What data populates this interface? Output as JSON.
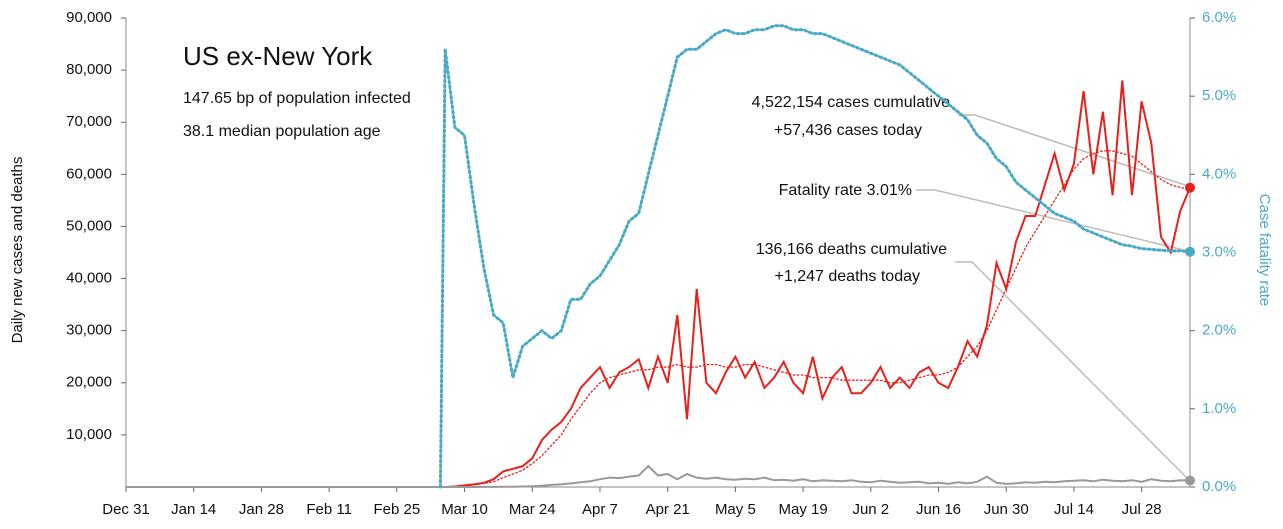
{
  "chart_data": {
    "type": "line",
    "title": "US ex-New York",
    "subtitle": [
      "147.65 bp of population infected",
      "38.1 median population age"
    ],
    "ylabel": "Daily new cases and deaths",
    "y2label": "Case fatality rate",
    "annotations": [
      "4,522,154 cases cumulative",
      "+57,436 cases today",
      "Fatality rate 3.01%",
      "136,166 deaths cumulative",
      "+1,247 deaths today"
    ],
    "xlim": [
      0,
      220
    ],
    "xticks": [
      {
        "value": 0,
        "label": "Dec 31"
      },
      {
        "value": 14,
        "label": "Jan 14"
      },
      {
        "value": 28,
        "label": "Jan 28"
      },
      {
        "value": 42,
        "label": "Feb 11"
      },
      {
        "value": 56,
        "label": "Feb 25"
      },
      {
        "value": 70,
        "label": "Mar 10"
      },
      {
        "value": 84,
        "label": "Mar 24"
      },
      {
        "value": 98,
        "label": "Apr 7"
      },
      {
        "value": 112,
        "label": "Apr 21"
      },
      {
        "value": 126,
        "label": "May 5"
      },
      {
        "value": 140,
        "label": "May 19"
      },
      {
        "value": 154,
        "label": "Jun 2"
      },
      {
        "value": 168,
        "label": "Jun 16"
      },
      {
        "value": 182,
        "label": "Jun 30"
      },
      {
        "value": 196,
        "label": "Jul 14"
      },
      {
        "value": 210,
        "label": "Jul 28"
      }
    ],
    "ylim": [
      0,
      90000
    ],
    "yticks": [
      {
        "value": 10000,
        "label": "10,000"
      },
      {
        "value": 20000,
        "label": "20,000"
      },
      {
        "value": 30000,
        "label": "30,000"
      },
      {
        "value": 40000,
        "label": "40,000"
      },
      {
        "value": 50000,
        "label": "50,000"
      },
      {
        "value": 60000,
        "label": "60,000"
      },
      {
        "value": 70000,
        "label": "70,000"
      },
      {
        "value": 80000,
        "label": "80,000"
      },
      {
        "value": 90000,
        "label": "90,000"
      }
    ],
    "y2lim": [
      0,
      6
    ],
    "y2ticks": [
      {
        "value": 0,
        "label": "0.0%"
      },
      {
        "value": 1,
        "label": "1.0%"
      },
      {
        "value": 2,
        "label": "2.0%"
      },
      {
        "value": 3,
        "label": "3.0%"
      },
      {
        "value": 4,
        "label": "4.0%"
      },
      {
        "value": 5,
        "label": "5.0%"
      },
      {
        "value": 6,
        "label": "6.0%"
      }
    ],
    "x": [
      0,
      20,
      40,
      60,
      64,
      65,
      66,
      68,
      70,
      72,
      74,
      76,
      78,
      80,
      82,
      84,
      86,
      88,
      90,
      92,
      94,
      96,
      98,
      100,
      102,
      104,
      106,
      108,
      110,
      112,
      114,
      116,
      118,
      120,
      122,
      124,
      126,
      128,
      130,
      132,
      134,
      136,
      138,
      140,
      142,
      144,
      146,
      148,
      150,
      152,
      154,
      156,
      158,
      160,
      162,
      164,
      166,
      168,
      170,
      172,
      174,
      176,
      178,
      180,
      182,
      184,
      186,
      188,
      190,
      192,
      194,
      196,
      198,
      200,
      202,
      204,
      206,
      208,
      210,
      212,
      214,
      216,
      218,
      220
    ],
    "series": [
      {
        "color": "#e8201c",
        "style": "solid",
        "end_marker": true,
        "values": [
          0,
          0,
          0,
          0,
          0,
          0,
          0,
          100,
          300,
          500,
          800,
          1500,
          3000,
          3500,
          4000,
          5500,
          9000,
          11000,
          12500,
          15000,
          19000,
          21000,
          23000,
          19000,
          22000,
          23000,
          24500,
          19000,
          25000,
          20000,
          33000,
          13000,
          38000,
          20000,
          18000,
          22000,
          25000,
          21000,
          24000,
          19000,
          21000,
          24000,
          20000,
          18000,
          25000,
          17000,
          21000,
          23000,
          18000,
          18000,
          20000,
          23000,
          19000,
          21000,
          19000,
          22000,
          23000,
          20000,
          19000,
          23000,
          28000,
          25000,
          31000,
          43000,
          38000,
          47000,
          52000,
          52000,
          58000,
          64000,
          57000,
          62000,
          76000,
          60000,
          72000,
          56000,
          78000,
          56000,
          74000,
          66000,
          48000,
          45000,
          53000,
          57436
        ]
      },
      {
        "color": "#e8201c",
        "style": "dotted",
        "end_marker": false,
        "values": [
          0,
          0,
          0,
          0,
          0,
          0,
          0,
          100,
          200,
          400,
          700,
          1000,
          1800,
          2500,
          3200,
          4500,
          6000,
          8000,
          10000,
          13000,
          15500,
          18000,
          20000,
          21000,
          21500,
          22000,
          22500,
          22500,
          23000,
          23000,
          23500,
          23000,
          23000,
          23500,
          23500,
          23000,
          23000,
          23500,
          23500,
          23000,
          22500,
          22000,
          21500,
          21500,
          21000,
          21000,
          21000,
          20500,
          20500,
          20500,
          20500,
          20500,
          20000,
          20000,
          20500,
          21000,
          21500,
          21500,
          22000,
          23000,
          25000,
          27000,
          30000,
          34000,
          38000,
          42000,
          46000,
          49000,
          52000,
          55000,
          58000,
          61000,
          63000,
          64000,
          64500,
          64500,
          64000,
          63500,
          62000,
          60500,
          59000,
          58000,
          57500,
          57000
        ]
      },
      {
        "color": "#999999",
        "style": "solid",
        "end_marker": true,
        "values": [
          0,
          0,
          0,
          0,
          0,
          0,
          0,
          0,
          0,
          0,
          10,
          20,
          30,
          60,
          100,
          150,
          250,
          400,
          500,
          700,
          900,
          1100,
          1500,
          1800,
          1700,
          2000,
          2200,
          4000,
          2200,
          2500,
          1500,
          2500,
          1800,
          1600,
          1800,
          1500,
          1400,
          1600,
          1500,
          1800,
          1300,
          1400,
          1200,
          1500,
          1100,
          1300,
          1200,
          1100,
          1300,
          1000,
          900,
          1200,
          1000,
          800,
          900,
          1000,
          700,
          800,
          600,
          900,
          700,
          1000,
          2000,
          800,
          600,
          700,
          900,
          800,
          1000,
          900,
          1100,
          1200,
          1300,
          1100,
          1400,
          1200,
          1100,
          1300,
          1000,
          1500,
          1200,
          1100,
          1300,
          1247
        ]
      },
      {
        "color": "#4aaac4",
        "style": "dotted",
        "axis": "y2",
        "end_marker": true,
        "values": [
          null,
          null,
          null,
          null,
          null,
          0,
          5.6,
          4.6,
          4.5,
          3.6,
          2.8,
          2.2,
          2.1,
          1.4,
          1.8,
          1.9,
          2.0,
          1.9,
          2.0,
          2.4,
          2.4,
          2.6,
          2.7,
          2.9,
          3.1,
          3.4,
          3.5,
          4.0,
          4.5,
          5.0,
          5.5,
          5.6,
          5.6,
          5.7,
          5.8,
          5.85,
          5.8,
          5.8,
          5.85,
          5.85,
          5.9,
          5.9,
          5.85,
          5.85,
          5.8,
          5.8,
          5.75,
          5.7,
          5.65,
          5.6,
          5.55,
          5.5,
          5.45,
          5.4,
          5.3,
          5.2,
          5.1,
          5.0,
          4.9,
          4.8,
          4.7,
          4.5,
          4.4,
          4.2,
          4.1,
          3.9,
          3.8,
          3.7,
          3.6,
          3.5,
          3.45,
          3.4,
          3.3,
          3.25,
          3.2,
          3.15,
          3.1,
          3.08,
          3.05,
          3.04,
          3.03,
          3.02,
          3.02,
          3.01
        ]
      }
    ]
  }
}
